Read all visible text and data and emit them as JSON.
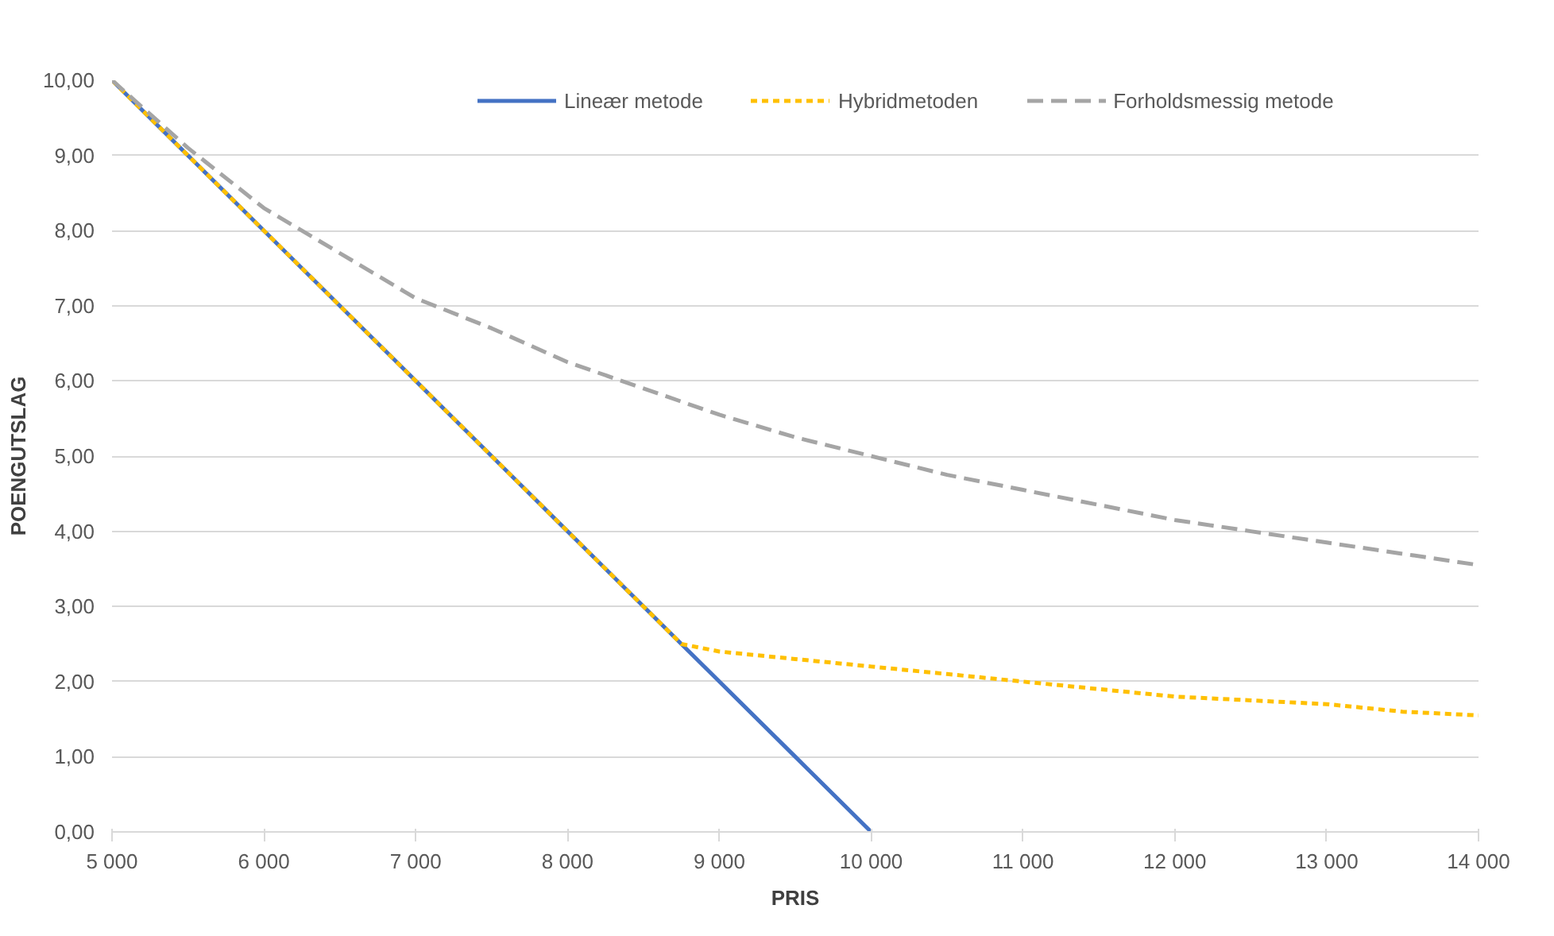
{
  "chart_data": {
    "type": "line",
    "xlabel": "PRIS",
    "ylabel": "POENGUTSLAG",
    "xlim": [
      5000,
      14000
    ],
    "ylim": [
      0,
      10
    ],
    "xticks": [
      {
        "value": 5000,
        "label": "5 000"
      },
      {
        "value": 6000,
        "label": "6 000"
      },
      {
        "value": 7000,
        "label": "7 000"
      },
      {
        "value": 8000,
        "label": "8 000"
      },
      {
        "value": 9000,
        "label": "9 000"
      },
      {
        "value": 10000,
        "label": "10 000"
      },
      {
        "value": 11000,
        "label": "11 000"
      },
      {
        "value": 12000,
        "label": "12 000"
      },
      {
        "value": 13000,
        "label": "13 000"
      },
      {
        "value": 14000,
        "label": "14 000"
      }
    ],
    "yticks": [
      {
        "value": 0,
        "label": "0,00"
      },
      {
        "value": 1,
        "label": "1,00"
      },
      {
        "value": 2,
        "label": "2,00"
      },
      {
        "value": 3,
        "label": "3,00"
      },
      {
        "value": 4,
        "label": "4,00"
      },
      {
        "value": 5,
        "label": "5,00"
      },
      {
        "value": 6,
        "label": "6,00"
      },
      {
        "value": 7,
        "label": "7,00"
      },
      {
        "value": 8,
        "label": "8,00"
      },
      {
        "value": 9,
        "label": "9,00"
      },
      {
        "value": 10,
        "label": "10,00"
      }
    ],
    "grid": "y",
    "legend": "top",
    "marker": "none",
    "series": [
      {
        "name": "Lineær metode",
        "color": "#4472c4",
        "line_style": "solid",
        "x": [
          5000,
          5500,
          6000,
          6500,
          7000,
          7500,
          8000,
          8500,
          9000,
          9500,
          10000
        ],
        "values": [
          10,
          9,
          8,
          7,
          6,
          5,
          4,
          3,
          2,
          1,
          0
        ]
      },
      {
        "name": "Hybridmetoden",
        "color": "#ffc000",
        "line_style": "dotted",
        "x": [
          5000,
          5500,
          6000,
          6500,
          7000,
          7500,
          8000,
          8500,
          8750,
          9000,
          9500,
          10000,
          10500,
          11000,
          11500,
          12000,
          12500,
          13000,
          13500,
          14000
        ],
        "values": [
          10,
          9,
          8,
          7,
          6,
          5,
          4,
          3,
          2.5,
          2.4,
          2.3,
          2.2,
          2.1,
          2,
          1.9,
          1.8,
          1.75,
          1.7,
          1.6,
          1.55
        ]
      },
      {
        "name": "Forholdsmessig metode",
        "color": "#a5a5a5",
        "line_style": "dashed",
        "x": [
          5000,
          5500,
          6000,
          6500,
          7000,
          7500,
          8000,
          8500,
          9000,
          9500,
          10000,
          10500,
          11000,
          11500,
          12000,
          12500,
          13000,
          13500,
          14000
        ],
        "values": [
          10,
          9.1,
          8.3,
          7.7,
          7.1,
          6.7,
          6.25,
          5.9,
          5.55,
          5.25,
          5,
          4.75,
          4.55,
          4.35,
          4.15,
          4,
          3.85,
          3.7,
          3.55
        ]
      }
    ]
  }
}
